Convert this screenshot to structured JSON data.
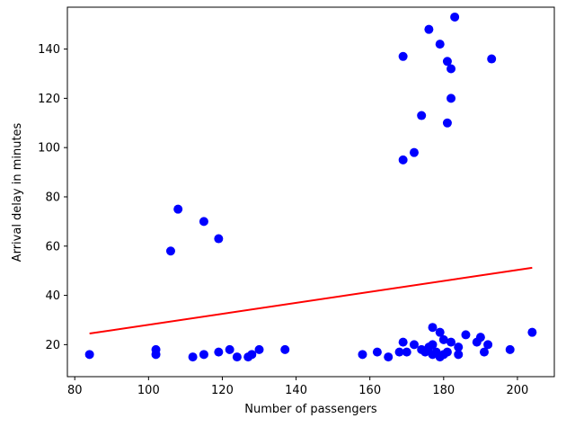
{
  "chart_data": {
    "type": "scatter",
    "title": "",
    "xlabel": "Number of passengers",
    "ylabel": "Arrival delay in minutes",
    "xlim": [
      78,
      210
    ],
    "ylim": [
      7,
      157
    ],
    "xticks": [
      80,
      100,
      120,
      140,
      160,
      180,
      200
    ],
    "yticks": [
      20,
      40,
      60,
      80,
      100,
      120,
      140
    ],
    "grid": false,
    "legend": "none",
    "point_color": "#0000ff",
    "line_color": "#ff0000",
    "points": [
      {
        "x": 84,
        "y": 16
      },
      {
        "x": 102,
        "y": 16
      },
      {
        "x": 102,
        "y": 18
      },
      {
        "x": 106,
        "y": 58
      },
      {
        "x": 108,
        "y": 75
      },
      {
        "x": 112,
        "y": 15
      },
      {
        "x": 115,
        "y": 70
      },
      {
        "x": 115,
        "y": 16
      },
      {
        "x": 119,
        "y": 63
      },
      {
        "x": 119,
        "y": 17
      },
      {
        "x": 122,
        "y": 18
      },
      {
        "x": 124,
        "y": 15
      },
      {
        "x": 127,
        "y": 15
      },
      {
        "x": 128,
        "y": 16
      },
      {
        "x": 130,
        "y": 18
      },
      {
        "x": 137,
        "y": 18
      },
      {
        "x": 158,
        "y": 16
      },
      {
        "x": 162,
        "y": 17
      },
      {
        "x": 165,
        "y": 15
      },
      {
        "x": 168,
        "y": 17
      },
      {
        "x": 169,
        "y": 21
      },
      {
        "x": 169,
        "y": 95
      },
      {
        "x": 169,
        "y": 137
      },
      {
        "x": 170,
        "y": 17
      },
      {
        "x": 172,
        "y": 20
      },
      {
        "x": 172,
        "y": 98
      },
      {
        "x": 174,
        "y": 18
      },
      {
        "x": 174,
        "y": 113
      },
      {
        "x": 175,
        "y": 17
      },
      {
        "x": 176,
        "y": 19
      },
      {
        "x": 176,
        "y": 148
      },
      {
        "x": 177,
        "y": 16
      },
      {
        "x": 177,
        "y": 20
      },
      {
        "x": 177,
        "y": 27
      },
      {
        "x": 178,
        "y": 17
      },
      {
        "x": 179,
        "y": 15
      },
      {
        "x": 179,
        "y": 25
      },
      {
        "x": 179,
        "y": 142
      },
      {
        "x": 180,
        "y": 16
      },
      {
        "x": 180,
        "y": 22
      },
      {
        "x": 181,
        "y": 17
      },
      {
        "x": 181,
        "y": 110
      },
      {
        "x": 181,
        "y": 135
      },
      {
        "x": 182,
        "y": 21
      },
      {
        "x": 182,
        "y": 120
      },
      {
        "x": 182,
        "y": 132
      },
      {
        "x": 183,
        "y": 153
      },
      {
        "x": 184,
        "y": 16
      },
      {
        "x": 184,
        "y": 19
      },
      {
        "x": 186,
        "y": 24
      },
      {
        "x": 189,
        "y": 21
      },
      {
        "x": 190,
        "y": 23
      },
      {
        "x": 191,
        "y": 17
      },
      {
        "x": 192,
        "y": 20
      },
      {
        "x": 193,
        "y": 136
      },
      {
        "x": 198,
        "y": 18
      },
      {
        "x": 204,
        "y": 25
      }
    ],
    "trend_line": {
      "x": [
        84,
        204
      ],
      "y": [
        24.5,
        51.2
      ]
    }
  }
}
